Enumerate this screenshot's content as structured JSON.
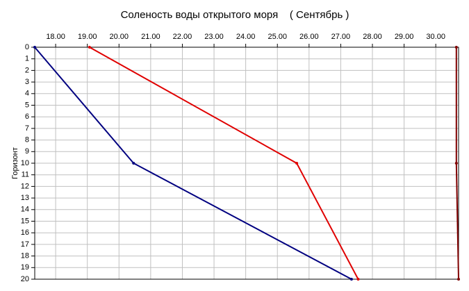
{
  "chart_data": {
    "type": "line",
    "title": "Соленость воды открытого моря    ( Сентябрь )",
    "y_label": "Горизонт",
    "xlim": [
      17.34,
      30.72
    ],
    "ylim": [
      0,
      20
    ],
    "y_inverted": true,
    "grid": true,
    "xticks": [
      {
        "value": 18,
        "label": "18.00"
      },
      {
        "value": 19,
        "label": "19.00"
      },
      {
        "value": 20,
        "label": "20.00"
      },
      {
        "value": 21,
        "label": "21.00"
      },
      {
        "value": 22,
        "label": "22.00"
      },
      {
        "value": 23,
        "label": "23.00"
      },
      {
        "value": 24,
        "label": "24.00"
      },
      {
        "value": 25,
        "label": "25.00"
      },
      {
        "value": 26,
        "label": "26.00"
      },
      {
        "value": 27,
        "label": "27.00"
      },
      {
        "value": 28,
        "label": "28.00"
      },
      {
        "value": 29,
        "label": "29.00"
      },
      {
        "value": 30,
        "label": "30.00"
      }
    ],
    "yticks": [
      0,
      1,
      2,
      3,
      4,
      5,
      6,
      7,
      8,
      9,
      10,
      11,
      12,
      13,
      14,
      15,
      16,
      17,
      18,
      19,
      20
    ],
    "series": [
      {
        "color": "#000080",
        "x": [
          17.34,
          20.46,
          27.34
        ],
        "values": [
          0,
          10,
          20
        ]
      },
      {
        "color": "#e00000",
        "x": [
          19.07,
          25.61,
          27.55
        ],
        "values": [
          0,
          10,
          20
        ]
      },
      {
        "color": "#800000",
        "x": [
          30.65,
          30.65,
          30.72
        ],
        "values": [
          0,
          10,
          20
        ]
      }
    ]
  }
}
